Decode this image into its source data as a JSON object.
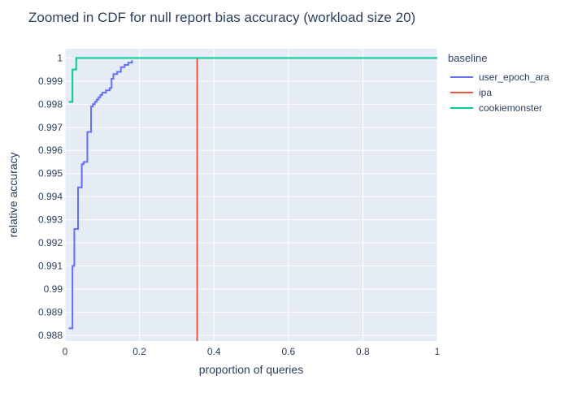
{
  "chart_data": {
    "type": "line",
    "line_shape": "step",
    "title": "Zoomed in CDF for null report bias accuracy (workload size 20)",
    "xlabel": "proportion of queries",
    "ylabel": "relative accuracy",
    "xlim": [
      0,
      1
    ],
    "ylim": [
      0.98775,
      1.0004
    ],
    "x_ticks": [
      0,
      0.2,
      0.4,
      0.6,
      0.8,
      1
    ],
    "x_tick_labels": [
      "0",
      "0.2",
      "0.4",
      "0.6",
      "0.8",
      "1"
    ],
    "y_ticks": [
      0.988,
      0.989,
      0.99,
      0.991,
      0.992,
      0.993,
      0.994,
      0.995,
      0.996,
      0.997,
      0.998,
      0.999,
      1
    ],
    "y_tick_labels": [
      "0.988",
      "0.989",
      "0.99",
      "0.991",
      "0.992",
      "0.993",
      "0.994",
      "0.995",
      "0.996",
      "0.997",
      "0.998",
      "0.999",
      "1"
    ],
    "grid": true,
    "legend_title": "baseline",
    "legend_position": "right",
    "series": [
      {
        "name": "user_epoch_ara",
        "color": "#636efa",
        "x": [
          0.01,
          0.02,
          0.025,
          0.03,
          0.035,
          0.04,
          0.045,
          0.05,
          0.055,
          0.06,
          0.065,
          0.07,
          0.075,
          0.08,
          0.085,
          0.09,
          0.095,
          0.1,
          0.11,
          0.12,
          0.125,
          0.13,
          0.14,
          0.15,
          0.16,
          0.17,
          0.175,
          0.18
        ],
        "y": [
          0.9883,
          0.991,
          0.9926,
          0.9926,
          0.9944,
          0.9944,
          0.9954,
          0.9955,
          0.9955,
          0.9968,
          0.9968,
          0.9979,
          0.998,
          0.9981,
          0.9982,
          0.9983,
          0.9984,
          0.9985,
          0.9986,
          0.9987,
          0.9991,
          0.9993,
          0.9994,
          0.9996,
          0.9997,
          0.9998,
          0.9998,
          0.9999
        ]
      },
      {
        "name": "ipa",
        "color": "#ef553b",
        "x": [
          0.355,
          0.355
        ],
        "y": [
          0.98775,
          1.0
        ]
      },
      {
        "name": "cookiemonster",
        "color": "#00cc96",
        "x": [
          0.01,
          0.02,
          0.025,
          0.03,
          1.0
        ],
        "y": [
          0.9981,
          0.9995,
          0.9995,
          1.0,
          1.0
        ]
      }
    ]
  }
}
